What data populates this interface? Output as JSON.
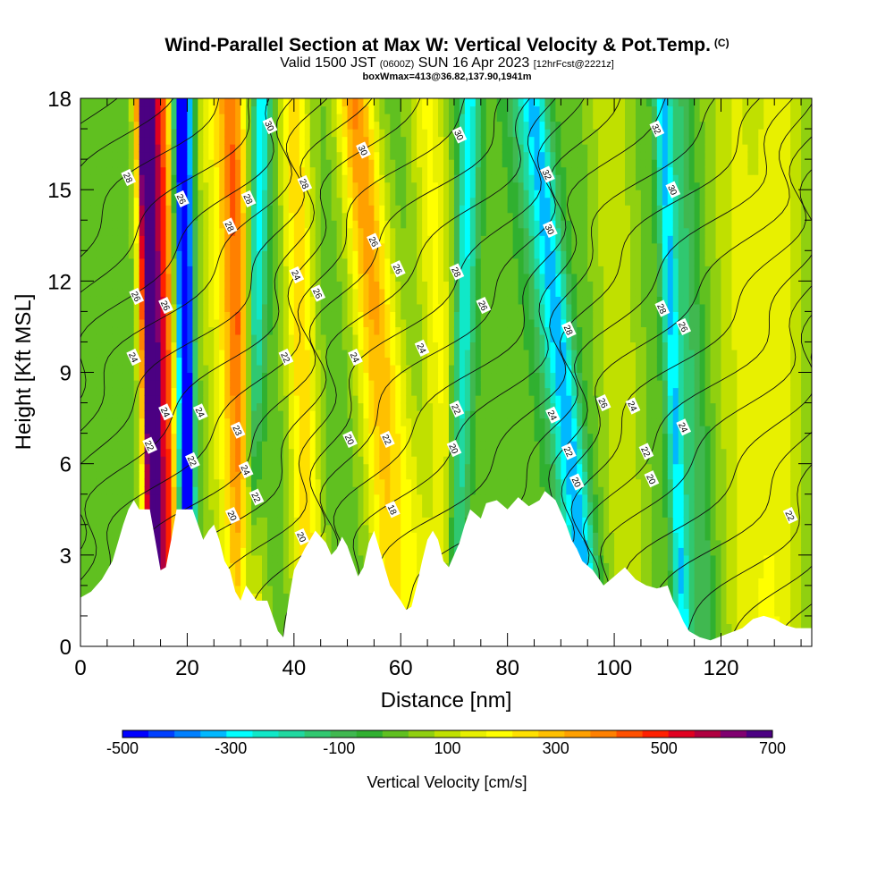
{
  "title": {
    "main": "Wind-Parallel Section at Max W: Vertical Velocity & Pot.Temp.",
    "copyright": "(C)",
    "valid_prefix": "Valid 1500 JST",
    "valid_utc": "(0600Z)",
    "valid_date": "SUN 16 Apr 2023",
    "forecast": "[12hrFcst@2221z]",
    "box_info": "boxWmax=413@36.82,137.90,1941m"
  },
  "chart_data": {
    "type": "heatmap",
    "xlabel": "Distance [nm]",
    "ylabel": "Height [Kft MSL]",
    "xlim": [
      0,
      137
    ],
    "ylim": [
      0,
      18
    ],
    "x_ticks": [
      "0",
      "20",
      "40",
      "60",
      "80",
      "100",
      "120"
    ],
    "y_ticks": [
      "0",
      "3",
      "6",
      "9",
      "12",
      "15",
      "18"
    ],
    "colorbar": {
      "label": "Vertical Velocity [cm/s]",
      "tick_labels": [
        "-500",
        "-300",
        "-100",
        "100",
        "300",
        "500",
        "700"
      ],
      "bounds": [
        -500,
        700
      ],
      "colors": [
        "#0000ff",
        "#0040ff",
        "#0080ff",
        "#00b8ff",
        "#00ffff",
        "#10e8c8",
        "#20d8a0",
        "#30c870",
        "#40b850",
        "#30b030",
        "#60c020",
        "#90d010",
        "#c0e000",
        "#e8f000",
        "#ffff00",
        "#ffe000",
        "#ffc000",
        "#ffa000",
        "#ff8000",
        "#ff5000",
        "#ff2000",
        "#e00020",
        "#b00040",
        "#800070",
        "#4b0082"
      ]
    },
    "background_w": 0,
    "wave_bands": [
      {
        "x_bottom": 14,
        "x_top": 12,
        "w": 650,
        "width": 1.6
      },
      {
        "x_bottom": 17,
        "x_top": 14.5,
        "w": 480,
        "width": 3.0
      },
      {
        "x_bottom": 19.5,
        "x_top": 18.5,
        "w": -500,
        "width": 1.5
      },
      {
        "x_bottom": 20.5,
        "x_top": 20,
        "w": -330,
        "width": 1.3
      },
      {
        "x_bottom": 29,
        "x_top": 25,
        "w": 160,
        "width": 4.0
      },
      {
        "x_bottom": 31.5,
        "x_top": 28.5,
        "w": 330,
        "width": 2.6
      },
      {
        "x_bottom": 31,
        "x_top": 34,
        "w": -300,
        "width": 1.8
      },
      {
        "x_bottom": 43,
        "x_top": 40,
        "w": 260,
        "width": 2.8
      },
      {
        "x_bottom": 59,
        "x_top": 51,
        "w": 240,
        "width": 3.5
      },
      {
        "x_bottom": 65,
        "x_top": 52,
        "w": 140,
        "width": 3.5
      },
      {
        "x_bottom": 70,
        "x_top": 73,
        "w": -280,
        "width": 2.0
      },
      {
        "x_bottom": 70,
        "x_top": 65,
        "w": 180,
        "width": 3.5
      },
      {
        "x_bottom": 96,
        "x_top": 85,
        "w": -280,
        "width": 2.5
      },
      {
        "x_bottom": 94,
        "x_top": 82,
        "w": -120,
        "width": 3.0
      },
      {
        "x_bottom": 103,
        "x_top": 99,
        "w": 120,
        "width": 4.0
      },
      {
        "x_bottom": 113,
        "x_top": 109,
        "w": -300,
        "width": 1.6
      },
      {
        "x_bottom": 117,
        "x_top": 112,
        "w": -120,
        "width": 2.5
      },
      {
        "x_bottom": 125,
        "x_top": 122,
        "w": 120,
        "width": 5.0
      },
      {
        "x_bottom": 131,
        "x_top": 131,
        "w": 140,
        "width": 5.0
      }
    ],
    "terrain": [
      [
        0,
        1.6
      ],
      [
        2,
        1.8
      ],
      [
        4,
        2.2
      ],
      [
        6,
        2.8
      ],
      [
        8,
        4.0
      ],
      [
        9,
        4.5
      ],
      [
        10,
        4.8
      ],
      [
        11,
        4.5
      ],
      [
        13,
        4.5
      ],
      [
        14,
        3.5
      ],
      [
        15,
        2.5
      ],
      [
        16,
        2.6
      ],
      [
        17,
        3.5
      ],
      [
        18,
        4.5
      ],
      [
        21,
        4.5
      ],
      [
        22,
        4.0
      ],
      [
        23,
        3.5
      ],
      [
        24,
        3.8
      ],
      [
        25,
        4.0
      ],
      [
        26,
        3.5
      ],
      [
        27,
        2.8
      ],
      [
        28,
        2.5
      ],
      [
        29,
        1.8
      ],
      [
        30,
        1.5
      ],
      [
        31,
        2.0
      ],
      [
        33,
        1.5
      ],
      [
        35,
        1.5
      ],
      [
        36,
        1.0
      ],
      [
        37,
        0.5
      ],
      [
        38,
        0.3
      ],
      [
        39,
        1.5
      ],
      [
        40,
        2.5
      ],
      [
        42,
        3.2
      ],
      [
        44,
        3.8
      ],
      [
        46,
        3.4
      ],
      [
        47,
        3.0
      ],
      [
        48,
        3.2
      ],
      [
        49,
        3.6
      ],
      [
        50,
        3.3
      ],
      [
        51,
        2.8
      ],
      [
        52,
        2.3
      ],
      [
        53,
        2.6
      ],
      [
        54,
        3.4
      ],
      [
        55,
        3.8
      ],
      [
        56,
        3.2
      ],
      [
        57,
        2.6
      ],
      [
        58,
        2.0
      ],
      [
        60,
        1.5
      ],
      [
        61,
        1.2
      ],
      [
        62,
        1.3
      ],
      [
        63,
        2.0
      ],
      [
        64,
        2.8
      ],
      [
        65,
        3.5
      ],
      [
        66,
        3.8
      ],
      [
        67,
        3.5
      ],
      [
        68,
        2.8
      ],
      [
        69,
        2.6
      ],
      [
        70,
        3.0
      ],
      [
        71,
        3.4
      ],
      [
        72,
        4.0
      ],
      [
        73,
        4.5
      ],
      [
        75,
        4.2
      ],
      [
        76,
        4.7
      ],
      [
        78,
        4.8
      ],
      [
        80,
        4.5
      ],
      [
        82,
        4.9
      ],
      [
        84,
        4.6
      ],
      [
        86,
        4.8
      ],
      [
        87,
        5.1
      ],
      [
        89,
        4.8
      ],
      [
        90,
        4.4
      ],
      [
        91,
        4.0
      ],
      [
        92,
        3.5
      ],
      [
        93,
        3.2
      ],
      [
        94,
        2.8
      ],
      [
        96,
        2.5
      ],
      [
        98,
        2.0
      ],
      [
        100,
        2.3
      ],
      [
        102,
        2.6
      ],
      [
        104,
        2.2
      ],
      [
        106,
        2.0
      ],
      [
        108,
        1.9
      ],
      [
        110,
        2.0
      ],
      [
        111,
        1.5
      ],
      [
        112,
        1.2
      ],
      [
        113,
        0.8
      ],
      [
        114,
        0.5
      ],
      [
        116,
        0.3
      ],
      [
        118,
        0.2
      ],
      [
        121,
        0.4
      ],
      [
        124,
        0.6
      ],
      [
        126,
        0.9
      ],
      [
        128,
        1.0
      ],
      [
        130,
        0.9
      ],
      [
        132,
        0.7
      ],
      [
        134,
        0.6
      ],
      [
        137,
        0.6
      ]
    ],
    "contour_labels": [
      {
        "x": 9.0,
        "y": 15.4,
        "text": "28"
      },
      {
        "x": 10.5,
        "y": 11.5,
        "text": "26"
      },
      {
        "x": 10.0,
        "y": 9.5,
        "text": "24"
      },
      {
        "x": 13.0,
        "y": 6.6,
        "text": "22"
      },
      {
        "x": 16.0,
        "y": 11.2,
        "text": "26"
      },
      {
        "x": 16.0,
        "y": 7.7,
        "text": "24"
      },
      {
        "x": 19.0,
        "y": 14.7,
        "text": "26"
      },
      {
        "x": 22.5,
        "y": 7.7,
        "text": "24"
      },
      {
        "x": 21.0,
        "y": 6.1,
        "text": "22"
      },
      {
        "x": 28.0,
        "y": 13.8,
        "text": "28"
      },
      {
        "x": 31.5,
        "y": 14.7,
        "text": "28"
      },
      {
        "x": 29.5,
        "y": 7.1,
        "text": "23"
      },
      {
        "x": 31.0,
        "y": 5.8,
        "text": "24"
      },
      {
        "x": 33.0,
        "y": 4.9,
        "text": "22"
      },
      {
        "x": 28.5,
        "y": 4.3,
        "text": "20"
      },
      {
        "x": 35.5,
        "y": 17.1,
        "text": "30"
      },
      {
        "x": 38.5,
        "y": 9.5,
        "text": "22"
      },
      {
        "x": 40.5,
        "y": 12.2,
        "text": "24"
      },
      {
        "x": 42.0,
        "y": 15.2,
        "text": "28"
      },
      {
        "x": 44.5,
        "y": 11.6,
        "text": "26"
      },
      {
        "x": 41.5,
        "y": 3.6,
        "text": "20"
      },
      {
        "x": 53.0,
        "y": 16.3,
        "text": "30"
      },
      {
        "x": 51.5,
        "y": 9.5,
        "text": "24"
      },
      {
        "x": 50.5,
        "y": 6.8,
        "text": "20"
      },
      {
        "x": 55.0,
        "y": 13.3,
        "text": "26"
      },
      {
        "x": 57.5,
        "y": 6.8,
        "text": "22"
      },
      {
        "x": 59.5,
        "y": 12.4,
        "text": "26"
      },
      {
        "x": 58.5,
        "y": 4.5,
        "text": "18"
      },
      {
        "x": 64.0,
        "y": 9.8,
        "text": "24"
      },
      {
        "x": 71.0,
        "y": 16.8,
        "text": "30"
      },
      {
        "x": 70.5,
        "y": 12.3,
        "text": "28"
      },
      {
        "x": 70.5,
        "y": 7.8,
        "text": "22"
      },
      {
        "x": 70.0,
        "y": 6.5,
        "text": "20"
      },
      {
        "x": 75.5,
        "y": 11.2,
        "text": "26"
      },
      {
        "x": 87.5,
        "y": 15.5,
        "text": "32"
      },
      {
        "x": 88.0,
        "y": 13.7,
        "text": "30"
      },
      {
        "x": 91.5,
        "y": 10.4,
        "text": "28"
      },
      {
        "x": 88.5,
        "y": 7.6,
        "text": "24"
      },
      {
        "x": 91.5,
        "y": 6.4,
        "text": "22"
      },
      {
        "x": 93.0,
        "y": 5.4,
        "text": "20"
      },
      {
        "x": 98.0,
        "y": 8.0,
        "text": "26"
      },
      {
        "x": 103.5,
        "y": 7.9,
        "text": "24"
      },
      {
        "x": 106.0,
        "y": 6.4,
        "text": "22"
      },
      {
        "x": 107.0,
        "y": 5.5,
        "text": "20"
      },
      {
        "x": 108.0,
        "y": 17.0,
        "text": "32"
      },
      {
        "x": 111.0,
        "y": 15.0,
        "text": "30"
      },
      {
        "x": 109.0,
        "y": 11.1,
        "text": "28"
      },
      {
        "x": 113.0,
        "y": 10.5,
        "text": "26"
      },
      {
        "x": 113.0,
        "y": 7.2,
        "text": "24"
      },
      {
        "x": 133.0,
        "y": 4.3,
        "text": "22"
      }
    ]
  }
}
